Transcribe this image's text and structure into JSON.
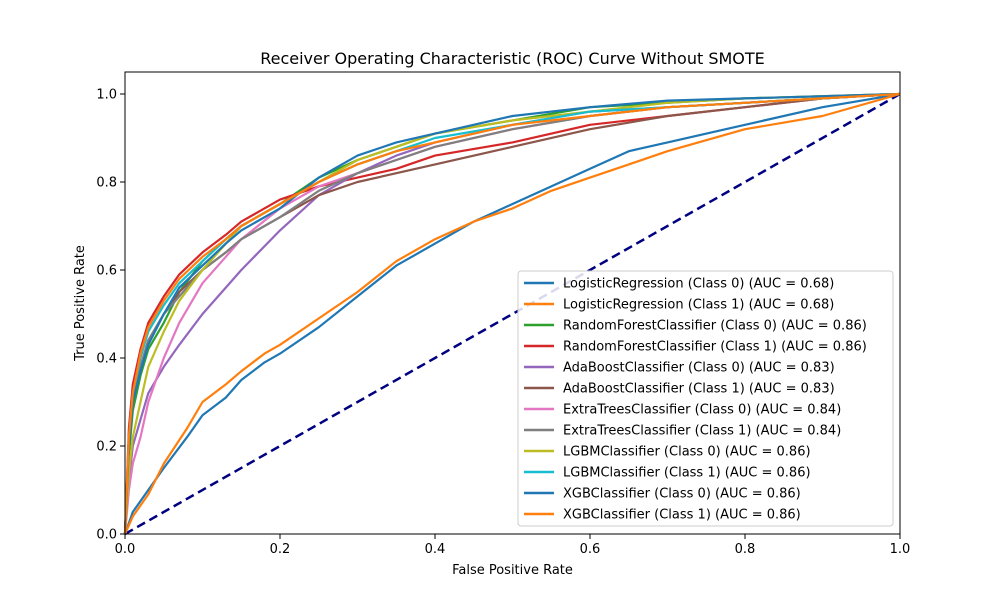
{
  "chart_data": {
    "type": "line",
    "title": "Receiver Operating Characteristic (ROC) Curve Without SMOTE",
    "xlabel": "False Positive Rate",
    "ylabel": "True Positive Rate",
    "xlim": [
      0.0,
      1.0
    ],
    "ylim": [
      0.0,
      1.05
    ],
    "xticks": [
      "0.0",
      "0.2",
      "0.4",
      "0.6",
      "0.8",
      "1.0"
    ],
    "yticks": [
      "0.0",
      "0.2",
      "0.4",
      "0.6",
      "0.8",
      "1.0"
    ],
    "grid": false,
    "legend_position": "lower-right",
    "diagonal": {
      "x": [
        0,
        1
      ],
      "y": [
        0,
        1
      ],
      "color": "#000080",
      "style": "dashed"
    },
    "series": [
      {
        "name": "LogisticRegression (Class 0) (AUC = 0.68)",
        "color": "#1f77b4",
        "x": [
          0,
          0.01,
          0.03,
          0.05,
          0.08,
          0.1,
          0.13,
          0.15,
          0.18,
          0.2,
          0.25,
          0.3,
          0.35,
          0.4,
          0.45,
          0.5,
          0.55,
          0.6,
          0.65,
          0.7,
          0.8,
          0.9,
          1.0
        ],
        "y": [
          0,
          0.05,
          0.1,
          0.15,
          0.22,
          0.27,
          0.31,
          0.35,
          0.39,
          0.41,
          0.47,
          0.54,
          0.61,
          0.66,
          0.71,
          0.75,
          0.79,
          0.83,
          0.87,
          0.89,
          0.93,
          0.97,
          1.0
        ]
      },
      {
        "name": "LogisticRegression (Class 1) (AUC = 0.68)",
        "color": "#ff7f0e",
        "x": [
          0,
          0.01,
          0.03,
          0.05,
          0.08,
          0.1,
          0.13,
          0.15,
          0.18,
          0.2,
          0.25,
          0.3,
          0.35,
          0.4,
          0.45,
          0.5,
          0.55,
          0.6,
          0.65,
          0.7,
          0.8,
          0.9,
          1.0
        ],
        "y": [
          0,
          0.04,
          0.09,
          0.16,
          0.24,
          0.3,
          0.34,
          0.37,
          0.41,
          0.43,
          0.49,
          0.55,
          0.62,
          0.67,
          0.71,
          0.74,
          0.78,
          0.81,
          0.84,
          0.87,
          0.92,
          0.95,
          1.0
        ]
      },
      {
        "name": "RandomForestClassifier (Class 0) (AUC = 0.86)",
        "color": "#2ca02c",
        "x": [
          0,
          0.005,
          0.01,
          0.02,
          0.03,
          0.05,
          0.07,
          0.1,
          0.13,
          0.15,
          0.2,
          0.25,
          0.3,
          0.35,
          0.4,
          0.5,
          0.6,
          0.7,
          0.8,
          0.9,
          1.0
        ],
        "y": [
          0,
          0.18,
          0.28,
          0.36,
          0.42,
          0.48,
          0.55,
          0.62,
          0.67,
          0.7,
          0.75,
          0.81,
          0.85,
          0.88,
          0.91,
          0.94,
          0.97,
          0.98,
          0.99,
          0.995,
          1.0
        ]
      },
      {
        "name": "RandomForestClassifier (Class 1) (AUC = 0.86)",
        "color": "#d62728",
        "x": [
          0,
          0.005,
          0.01,
          0.02,
          0.03,
          0.05,
          0.07,
          0.1,
          0.13,
          0.15,
          0.2,
          0.25,
          0.3,
          0.35,
          0.4,
          0.5,
          0.6,
          0.7,
          0.8,
          0.9,
          1.0
        ],
        "y": [
          0,
          0.24,
          0.34,
          0.42,
          0.48,
          0.54,
          0.59,
          0.64,
          0.68,
          0.71,
          0.76,
          0.79,
          0.81,
          0.83,
          0.86,
          0.89,
          0.93,
          0.95,
          0.97,
          0.99,
          1.0
        ]
      },
      {
        "name": "AdaBoostClassifier (Class 0) (AUC = 0.83)",
        "color": "#9467bd",
        "x": [
          0,
          0.005,
          0.01,
          0.02,
          0.03,
          0.05,
          0.07,
          0.1,
          0.13,
          0.15,
          0.2,
          0.25,
          0.3,
          0.35,
          0.4,
          0.5,
          0.6,
          0.7,
          0.8,
          0.9,
          1.0
        ],
        "y": [
          0,
          0.12,
          0.2,
          0.26,
          0.32,
          0.38,
          0.43,
          0.5,
          0.56,
          0.6,
          0.69,
          0.77,
          0.82,
          0.86,
          0.89,
          0.93,
          0.96,
          0.97,
          0.98,
          0.99,
          1.0
        ]
      },
      {
        "name": "AdaBoostClassifier (Class 1) (AUC = 0.83)",
        "color": "#8c564b",
        "x": [
          0,
          0.005,
          0.01,
          0.02,
          0.03,
          0.05,
          0.07,
          0.1,
          0.13,
          0.15,
          0.2,
          0.25,
          0.3,
          0.35,
          0.4,
          0.5,
          0.6,
          0.7,
          0.8,
          0.9,
          1.0
        ],
        "y": [
          0,
          0.2,
          0.3,
          0.38,
          0.44,
          0.5,
          0.55,
          0.6,
          0.64,
          0.67,
          0.72,
          0.77,
          0.8,
          0.82,
          0.84,
          0.88,
          0.92,
          0.95,
          0.97,
          0.99,
          1.0
        ]
      },
      {
        "name": "ExtraTreesClassifier (Class 0) (AUC = 0.84)",
        "color": "#e377c2",
        "x": [
          0,
          0.005,
          0.01,
          0.02,
          0.03,
          0.05,
          0.07,
          0.1,
          0.13,
          0.15,
          0.2,
          0.25,
          0.3,
          0.35,
          0.4,
          0.5,
          0.6,
          0.7,
          0.8,
          0.9,
          1.0
        ],
        "y": [
          0,
          0.1,
          0.16,
          0.22,
          0.3,
          0.4,
          0.48,
          0.57,
          0.63,
          0.67,
          0.74,
          0.79,
          0.82,
          0.85,
          0.88,
          0.92,
          0.95,
          0.97,
          0.98,
          0.99,
          1.0
        ]
      },
      {
        "name": "ExtraTreesClassifier (Class 1) (AUC = 0.84)",
        "color": "#7f7f7f",
        "x": [
          0,
          0.005,
          0.01,
          0.02,
          0.03,
          0.05,
          0.07,
          0.1,
          0.13,
          0.15,
          0.2,
          0.25,
          0.3,
          0.35,
          0.4,
          0.5,
          0.6,
          0.7,
          0.8,
          0.9,
          1.0
        ],
        "y": [
          0,
          0.2,
          0.3,
          0.38,
          0.44,
          0.5,
          0.54,
          0.6,
          0.64,
          0.67,
          0.72,
          0.78,
          0.82,
          0.85,
          0.88,
          0.92,
          0.95,
          0.97,
          0.98,
          0.99,
          1.0
        ]
      },
      {
        "name": "LGBMClassifier (Class 0) (AUC = 0.86)",
        "color": "#bcbd22",
        "x": [
          0,
          0.005,
          0.01,
          0.02,
          0.03,
          0.05,
          0.07,
          0.1,
          0.13,
          0.15,
          0.2,
          0.25,
          0.3,
          0.35,
          0.4,
          0.5,
          0.6,
          0.7,
          0.8,
          0.9,
          1.0
        ],
        "y": [
          0,
          0.14,
          0.22,
          0.3,
          0.38,
          0.46,
          0.53,
          0.6,
          0.66,
          0.7,
          0.75,
          0.8,
          0.85,
          0.88,
          0.91,
          0.94,
          0.96,
          0.98,
          0.99,
          0.995,
          1.0
        ]
      },
      {
        "name": "LGBMClassifier (Class 1) (AUC = 0.86)",
        "color": "#17becf",
        "x": [
          0,
          0.005,
          0.01,
          0.02,
          0.03,
          0.05,
          0.07,
          0.1,
          0.13,
          0.15,
          0.2,
          0.25,
          0.3,
          0.35,
          0.4,
          0.5,
          0.6,
          0.7,
          0.8,
          0.9,
          1.0
        ],
        "y": [
          0,
          0.22,
          0.32,
          0.4,
          0.46,
          0.52,
          0.57,
          0.62,
          0.67,
          0.7,
          0.75,
          0.8,
          0.84,
          0.87,
          0.9,
          0.93,
          0.96,
          0.97,
          0.98,
          0.99,
          1.0
        ]
      },
      {
        "name": "XGBClassifier (Class 0) (AUC = 0.86)",
        "color": "#1f77b4",
        "x": [
          0,
          0.005,
          0.01,
          0.02,
          0.03,
          0.05,
          0.07,
          0.1,
          0.13,
          0.15,
          0.2,
          0.25,
          0.3,
          0.35,
          0.4,
          0.5,
          0.6,
          0.7,
          0.8,
          0.9,
          1.0
        ],
        "y": [
          0,
          0.2,
          0.3,
          0.37,
          0.43,
          0.5,
          0.56,
          0.61,
          0.66,
          0.69,
          0.74,
          0.81,
          0.86,
          0.89,
          0.91,
          0.95,
          0.97,
          0.985,
          0.99,
          0.995,
          1.0
        ]
      },
      {
        "name": "XGBClassifier (Class 1) (AUC = 0.86)",
        "color": "#ff7f0e",
        "x": [
          0,
          0.005,
          0.01,
          0.02,
          0.03,
          0.05,
          0.07,
          0.1,
          0.13,
          0.15,
          0.2,
          0.25,
          0.3,
          0.35,
          0.4,
          0.5,
          0.6,
          0.7,
          0.8,
          0.9,
          1.0
        ],
        "y": [
          0,
          0.22,
          0.32,
          0.41,
          0.47,
          0.53,
          0.58,
          0.63,
          0.67,
          0.7,
          0.75,
          0.8,
          0.84,
          0.87,
          0.89,
          0.93,
          0.95,
          0.97,
          0.98,
          0.99,
          1.0
        ]
      }
    ]
  }
}
